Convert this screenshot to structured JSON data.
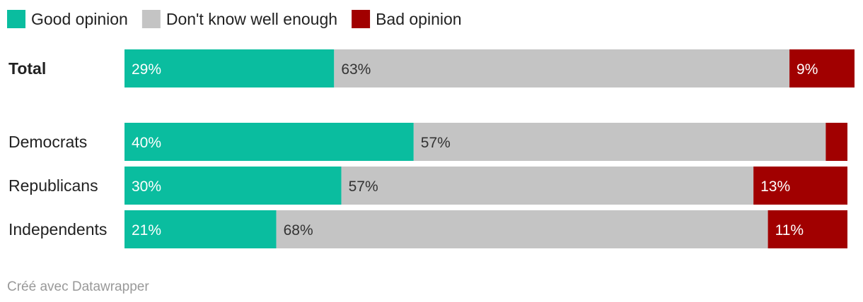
{
  "chart_data": {
    "type": "bar",
    "orientation": "horizontal",
    "stacked": true,
    "normalized": true,
    "title": "",
    "xlabel": "",
    "ylabel": "",
    "legend_position": "top-left",
    "categories": [
      "Total",
      "Democrats",
      "Republicans",
      "Independents"
    ],
    "series": [
      {
        "key": "good",
        "name": "Good opinion",
        "color": "#0abd9f",
        "text_color": "#ffffff",
        "values": [
          29,
          40,
          30,
          21
        ],
        "labels": [
          "29%",
          "40%",
          "30%",
          "21%"
        ]
      },
      {
        "key": "dontknow",
        "name": "Don't know well enough",
        "color": "#c4c4c4",
        "text_color": "#333333",
        "values": [
          63,
          57,
          57,
          68
        ],
        "labels": [
          "63%",
          "57%",
          "57%",
          "68%"
        ]
      },
      {
        "key": "bad",
        "name": "Bad opinion",
        "color": "#a10000",
        "text_color": "#ffffff",
        "values": [
          9,
          3,
          13,
          11
        ],
        "labels": [
          "9%",
          "",
          "13%",
          "11%"
        ]
      }
    ],
    "bold_categories": [
      "Total"
    ]
  },
  "footer": {
    "credit": "Créé avec Datawrapper"
  }
}
